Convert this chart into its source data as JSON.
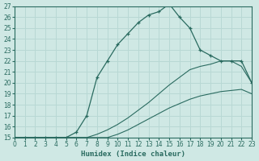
{
  "xlabel": "Humidex (Indice chaleur)",
  "bg_color": "#cfe8e4",
  "grid_color": "#b8d8d4",
  "line_color": "#2a6b60",
  "xlim": [
    0,
    23
  ],
  "ylim": [
    15,
    27
  ],
  "xticks": [
    0,
    1,
    2,
    3,
    4,
    5,
    6,
    7,
    8,
    9,
    10,
    11,
    12,
    13,
    14,
    15,
    16,
    17,
    18,
    19,
    20,
    21,
    22,
    23
  ],
  "yticks": [
    15,
    16,
    17,
    18,
    19,
    20,
    21,
    22,
    23,
    24,
    25,
    26,
    27
  ],
  "curve_top_x": [
    0,
    1,
    2,
    3,
    4,
    5,
    6,
    7,
    8,
    9,
    10,
    11,
    12,
    13,
    14,
    15,
    16,
    17,
    18,
    19,
    20,
    21,
    22,
    23
  ],
  "curve_top_y": [
    15,
    15,
    15,
    15,
    15,
    15,
    15.5,
    17,
    20.5,
    22,
    23.5,
    24.5,
    25.5,
    26.2,
    26.5,
    27.2,
    26,
    25,
    23,
    22.5,
    22,
    22,
    22,
    20
  ],
  "curve_mid_x": [
    0,
    1,
    2,
    3,
    4,
    5,
    6,
    7,
    8,
    9,
    10,
    11,
    12,
    13,
    14,
    15,
    16,
    17,
    18,
    19,
    20,
    21,
    22,
    23
  ],
  "curve_mid_y": [
    15,
    15,
    15,
    15,
    15,
    15,
    15,
    15,
    15.3,
    15.7,
    16.2,
    16.8,
    17.5,
    18.2,
    19,
    19.8,
    20.5,
    21.2,
    21.5,
    21.7,
    22,
    22,
    21.5,
    20
  ],
  "curve_bot_x": [
    0,
    1,
    2,
    3,
    4,
    5,
    6,
    7,
    8,
    9,
    10,
    11,
    12,
    13,
    14,
    15,
    16,
    17,
    18,
    19,
    20,
    21,
    22,
    23
  ],
  "curve_bot_y": [
    15,
    15,
    15,
    15,
    15,
    15,
    15,
    15,
    15,
    15,
    15.3,
    15.7,
    16.2,
    16.7,
    17.2,
    17.7,
    18.1,
    18.5,
    18.8,
    19,
    19.2,
    19.3,
    19.4,
    19
  ]
}
